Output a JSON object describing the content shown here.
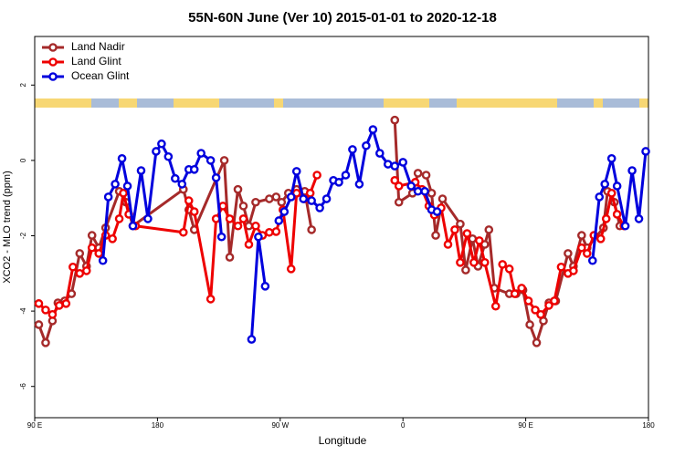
{
  "chart_data": {
    "type": "line",
    "title": "55N-60N June (Ver 10)   2015-01-01 to 2020-12-18",
    "xlabel": "Longitude",
    "ylabel": "XCO2 - MLO trend (ppm)",
    "xlim": [
      90,
      540
    ],
    "ylim": [
      -6.83,
      3.29
    ],
    "xticks": [
      {
        "value": 90,
        "label": "90 E"
      },
      180,
      {
        "value": 270,
        "label": "90 W"
      },
      {
        "value": 360,
        "label": "0"
      },
      {
        "value": 450,
        "label": "90 E"
      },
      {
        "value": 540,
        "label": "180"
      }
    ],
    "yticks": [
      -6,
      -4,
      -2,
      0,
      2
    ],
    "legend": "upper left",
    "series": [
      {
        "name": "Land Nadir",
        "color": "#a52a2a",
        "x": [
          93,
          98,
          103,
          107,
          112,
          117,
          123,
          128,
          132,
          137,
          142,
          152,
          157,
          162,
          199,
          203,
          207,
          229,
          233,
          239,
          243,
          247,
          252,
          262,
          267,
          271,
          276,
          282,
          288,
          293,
          320,
          354,
          357,
          367,
          371,
          377,
          381,
          384,
          389,
          402,
          406,
          411,
          415,
          420,
          423,
          427,
          438,
          443,
          448,
          453,
          458,
          463,
          467,
          472,
          481,
          485,
          491,
          495,
          507,
          510,
          515,
          519
        ],
        "values": [
          -4.36,
          -4.84,
          -4.26,
          -3.78,
          -3.73,
          -3.54,
          -2.47,
          -2.81,
          -1.99,
          -2.32,
          -1.79,
          -0.82,
          -1.11,
          -1.74,
          -0.77,
          -1.31,
          -1.84,
          0,
          -2.57,
          -0.77,
          -1.21,
          -1.74,
          -1.11,
          -1.02,
          -0.97,
          -1.11,
          -0.87,
          -0.77,
          -0.82,
          -1.84,
          null,
          1.07,
          -1.11,
          -0.87,
          -0.34,
          -0.39,
          -0.87,
          -1.99,
          -1.02,
          -1.69,
          -2.91,
          -2.08,
          -2.81,
          -2.23,
          -1.84,
          -3.39,
          -3.54,
          -3.54,
          -3.44,
          -4.36,
          -4.84,
          -4.26,
          -3.78,
          -3.73,
          -2.47,
          -2.81,
          -1.99,
          -2.32,
          -1.79,
          -0.82,
          -1.11,
          -1.74
        ]
      },
      {
        "name": "Land Glint",
        "color": "#ee0000",
        "x": [
          93,
          98,
          103,
          108,
          113,
          118,
          123,
          128,
          132,
          137,
          142,
          147,
          152,
          155,
          159,
          164,
          199,
          203,
          207,
          219,
          223,
          228,
          233,
          239,
          243,
          247,
          252,
          257,
          262,
          267,
          272,
          278,
          282,
          288,
          292,
          297,
          325,
          354,
          357,
          369,
          374,
          379,
          383,
          388,
          393,
          398,
          402,
          407,
          412,
          416,
          420,
          428,
          433,
          438,
          442,
          447,
          452,
          457,
          461,
          467,
          471,
          476,
          481,
          485,
          491,
          495,
          500,
          505,
          509,
          513,
          517,
          522
        ],
        "values": [
          -3.8,
          -3.97,
          -4.09,
          -3.85,
          -3.8,
          -2.83,
          -3.0,
          -2.93,
          -2.32,
          -2.47,
          -1.99,
          -2.08,
          -1.55,
          -0.87,
          -1.43,
          -1.74,
          -1.91,
          -1.07,
          -1.36,
          -3.68,
          -1.55,
          -1.21,
          -1.55,
          -1.74,
          -1.55,
          -2.23,
          -1.74,
          -1.99,
          -1.91,
          -1.89,
          -1.31,
          -2.88,
          -0.87,
          -1.02,
          -0.87,
          -0.39,
          null,
          -0.53,
          -0.68,
          -0.58,
          -0.77,
          -1.21,
          -1.45,
          -1.26,
          -2.23,
          -1.84,
          -2.71,
          -1.94,
          -2.71,
          -2.13,
          -2.71,
          -3.87,
          -2.76,
          -2.88,
          -3.54,
          -3.39,
          -3.73,
          -3.97,
          -4.09,
          -3.85,
          -3.73,
          -2.83,
          -3.0,
          -2.93,
          -2.32,
          -2.47,
          -1.99,
          -2.08,
          -1.55,
          -0.87,
          -1.43,
          -1.74
        ]
      },
      {
        "name": "Ocean Glint",
        "color": "#0000dd",
        "x": [
          140,
          144,
          149,
          154,
          158,
          162,
          168,
          173,
          179,
          183,
          188,
          193,
          198,
          203,
          207,
          212,
          219,
          223,
          227,
          240,
          249,
          254,
          259,
          262,
          269,
          273,
          278,
          282,
          287,
          293,
          299,
          304,
          309,
          313,
          318,
          323,
          328,
          333,
          338,
          343,
          349,
          354,
          360,
          366,
          371,
          376,
          381,
          385,
          450,
          499,
          504,
          508,
          513,
          517,
          523,
          528,
          533,
          538
        ],
        "values": [
          -2.66,
          -0.97,
          -0.63,
          0.05,
          -0.68,
          -1.74,
          -0.27,
          -1.55,
          0.24,
          0.44,
          0.1,
          -0.48,
          -0.63,
          -0.24,
          -0.24,
          0.19,
          0,
          -0.46,
          -2.03,
          null,
          -4.75,
          -2.03,
          -3.34,
          null,
          -1.6,
          -1.36,
          -0.97,
          -0.29,
          -1.02,
          -1.07,
          -1.26,
          -1.02,
          -0.53,
          -0.58,
          -0.39,
          0.29,
          -0.63,
          0.39,
          0.82,
          0.19,
          -0.1,
          -0.15,
          -0.05,
          -0.68,
          -0.82,
          -0.82,
          -1.31,
          -1.36,
          null,
          -2.66,
          -0.97,
          -0.63,
          0.05,
          -0.68,
          -1.74,
          -0.27,
          -1.55,
          0.24
        ]
      }
    ]
  }
}
